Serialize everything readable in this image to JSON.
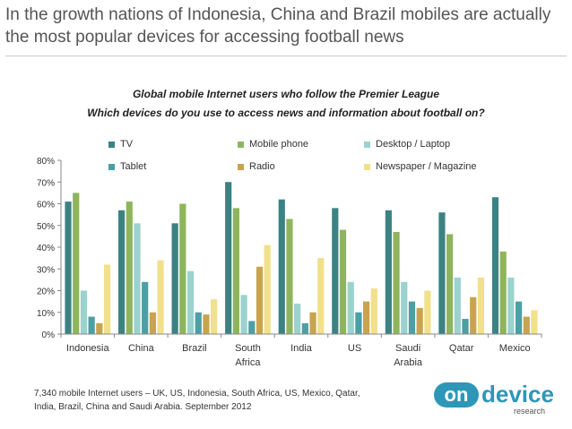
{
  "headline": "In the growth nations of Indonesia, China and Brazil mobiles are actually the most popular devices for accessing football news",
  "chart_data": {
    "type": "bar",
    "title": "Global mobile Internet users who follow the Premier League",
    "subtitle": "Which devices do you use to access news and information about football on?",
    "categories": [
      "Indonesia",
      "China",
      "Brazil",
      "South Africa",
      "India",
      "US",
      "Saudi Arabia",
      "Qatar",
      "Mexico"
    ],
    "ylim": [
      0,
      80
    ],
    "yticks": [
      0,
      10,
      20,
      30,
      40,
      50,
      60,
      70,
      80
    ],
    "ytick_labels": [
      "0%",
      "10%",
      "20%",
      "30%",
      "40%",
      "50%",
      "60%",
      "70%",
      "80%"
    ],
    "legend_position": "top",
    "series": [
      {
        "name": "TV",
        "color": "#3d8283",
        "values": [
          61,
          57,
          51,
          70,
          62,
          58,
          57,
          56,
          63
        ]
      },
      {
        "name": "Mobile phone",
        "color": "#8eb55d",
        "values": [
          65,
          61,
          60,
          58,
          53,
          48,
          47,
          46,
          38
        ]
      },
      {
        "name": "Desktop / Laptop",
        "color": "#9bd2ce",
        "values": [
          20,
          51,
          29,
          18,
          14,
          24,
          24,
          26,
          26
        ]
      },
      {
        "name": "Tablet",
        "color": "#4d9fa4",
        "values": [
          8,
          24,
          10,
          6,
          5,
          10,
          15,
          7,
          15
        ]
      },
      {
        "name": "Radio",
        "color": "#c9a44e",
        "values": [
          5,
          10,
          9,
          31,
          10,
          15,
          12,
          17,
          8
        ]
      },
      {
        "name": "Newspaper / Magazine",
        "color": "#f1e08c",
        "values": [
          32,
          34,
          16,
          41,
          35,
          21,
          20,
          26,
          11
        ]
      }
    ]
  },
  "footnote": {
    "line1": "7,340 mobile Internet users – UK, US, Indonesia, South Africa, US, Mexico, Qatar,",
    "line2": "India, Brazil, China and Saudi Arabia. September 2012"
  },
  "logo": {
    "on": "on",
    "device": "device",
    "research": "research"
  }
}
